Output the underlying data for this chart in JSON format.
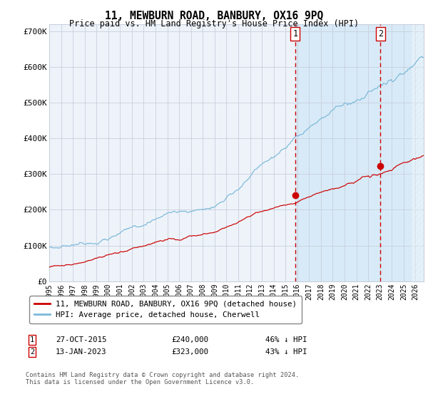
{
  "title": "11, MEWBURN ROAD, BANBURY, OX16 9PQ",
  "subtitle": "Price paid vs. HM Land Registry's House Price Index (HPI)",
  "hpi_color": "#7ab8d9",
  "price_color": "#cc0000",
  "background_color": "#ffffff",
  "plot_bg_color": "#eef3fa",
  "shaded_region_color": "#d8eaf7",
  "grid_color": "#c8d0dc",
  "ylim": [
    0,
    720000
  ],
  "yticks": [
    0,
    100000,
    200000,
    300000,
    400000,
    500000,
    600000,
    700000
  ],
  "ytick_labels": [
    "£0",
    "£100K",
    "£200K",
    "£300K",
    "£400K",
    "£500K",
    "£600K",
    "£700K"
  ],
  "sale1_x": 2015.83,
  "sale1_price": 240000,
  "sale2_x": 2023.04,
  "sale2_price": 323000,
  "sale1_date": "27-OCT-2015",
  "sale1_pct": "46% ↓ HPI",
  "sale2_date": "13-JAN-2023",
  "sale2_pct": "43% ↓ HPI",
  "legend_line1": "11, MEWBURN ROAD, BANBURY, OX16 9PQ (detached house)",
  "legend_line2": "HPI: Average price, detached house, Cherwell",
  "footer": "Contains HM Land Registry data © Crown copyright and database right 2024.\nThis data is licensed under the Open Government Licence v3.0."
}
